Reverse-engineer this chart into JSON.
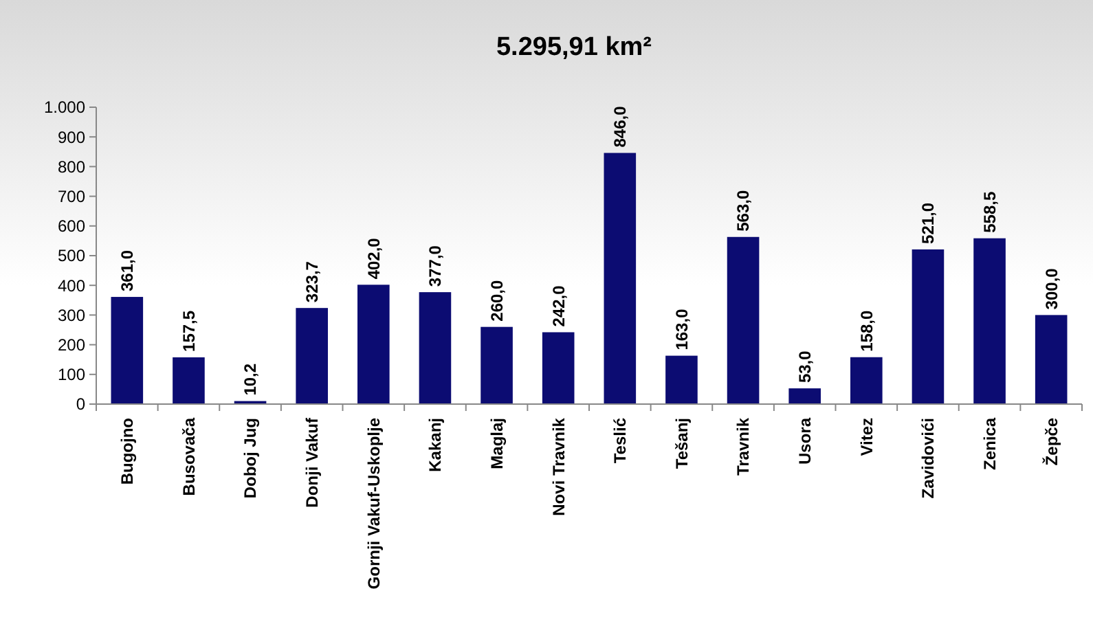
{
  "chart_data": {
    "type": "bar",
    "title": "5.295,91 km²",
    "categories": [
      "Bugojno",
      "Busovača",
      "Doboj Jug",
      "Donji Vakuf",
      "Gornji Vakuf-Uskoplje",
      "Kakanj",
      "Maglaj",
      "Novi Travnik",
      "Teslić",
      "Tešanj",
      "Travnik",
      "Usora",
      "Vitez",
      "Zavidovići",
      "Zenica",
      "Žepče"
    ],
    "values": [
      361.0,
      157.5,
      10.2,
      323.7,
      402.0,
      377.0,
      260.0,
      242.0,
      846.0,
      163.0,
      563.0,
      53.0,
      158.0,
      521.0,
      558.5,
      300.0
    ],
    "value_labels": [
      "361,0",
      "157,5",
      "10,2",
      "323,7",
      "402,0",
      "377,0",
      "260,0",
      "242,0",
      "846,0",
      "163,0",
      "563,0",
      "53,0",
      "158,0",
      "521,0",
      "558,5",
      "300,0"
    ],
    "color": "#0c0c72",
    "ylim": [
      0,
      1000
    ],
    "yticks": [
      0,
      100,
      200,
      300,
      400,
      500,
      600,
      700,
      800,
      900,
      {
        "value": 1000,
        "label": "1.000"
      }
    ],
    "grid": false
  }
}
